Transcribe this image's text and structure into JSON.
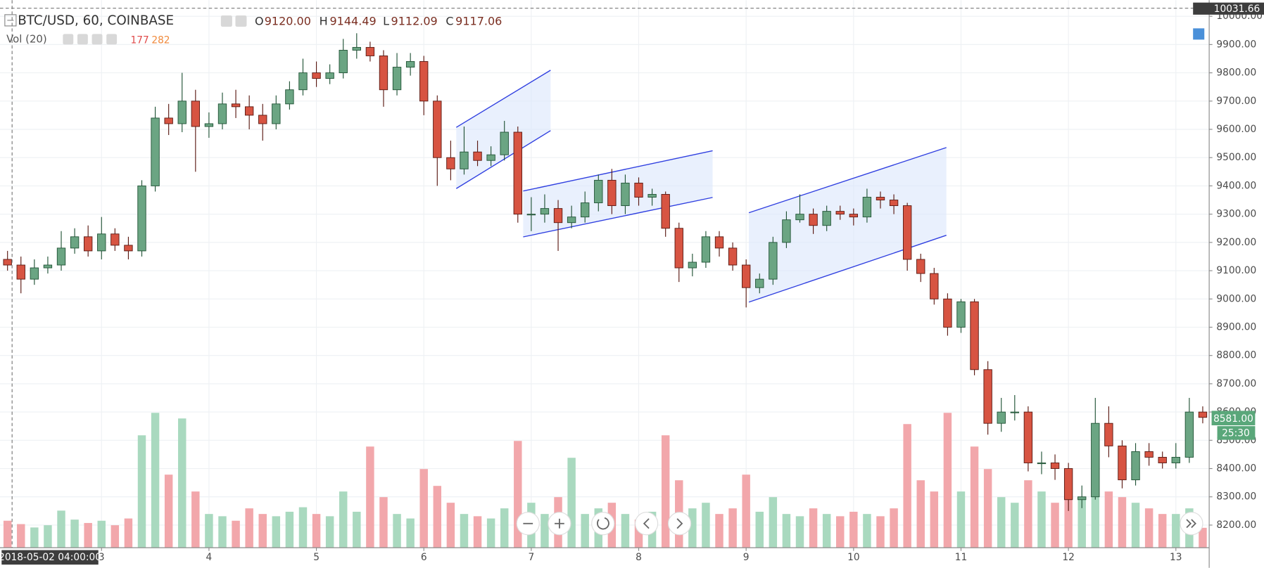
{
  "chart_data": {
    "type": "candlestick",
    "title": "BTC/USD, 60, COINBASE",
    "ohlc_legend": [
      {
        "label": "O",
        "value": "9120.00"
      },
      {
        "label": "H",
        "value": "9144.49"
      },
      {
        "label": "L",
        "value": "9112.09"
      },
      {
        "label": "C",
        "value": "9117.06"
      }
    ],
    "volume_legend": {
      "label": "Vol (20)",
      "values": [
        "177",
        "282"
      ]
    },
    "x": [
      2.125,
      2.25,
      2.375,
      2.5,
      2.625,
      2.75,
      2.875,
      3,
      3.125,
      3.25,
      3.375,
      3.5,
      3.625,
      3.75,
      3.875,
      4,
      4.125,
      4.25,
      4.375,
      4.5,
      4.625,
      4.75,
      4.875,
      5,
      5.125,
      5.25,
      5.375,
      5.5,
      5.625,
      5.75,
      5.875,
      6,
      6.125,
      6.25,
      6.375,
      6.5,
      6.625,
      6.75,
      6.875,
      7,
      7.125,
      7.25,
      7.375,
      7.5,
      7.625,
      7.75,
      7.875,
      8,
      8.125,
      8.25,
      8.375,
      8.5,
      8.625,
      8.75,
      8.875,
      9,
      9.125,
      9.25,
      9.375,
      9.5,
      9.625,
      9.75,
      9.875,
      10,
      10.125,
      10.25,
      10.375,
      10.5,
      10.625,
      10.75,
      10.875,
      11,
      11.125,
      11.25,
      11.375,
      11.5,
      11.625,
      11.75,
      11.875,
      12,
      12.125,
      12.25,
      12.375,
      12.5,
      12.625,
      12.75,
      12.875,
      13,
      13.125,
      13.25
    ],
    "open": [
      9140,
      9120,
      9070,
      9110,
      9120,
      9180,
      9220,
      9170,
      9230,
      9190,
      9170,
      9400,
      9640,
      9620,
      9700,
      9610,
      9620,
      9690,
      9680,
      9650,
      9620,
      9690,
      9740,
      9800,
      9780,
      9800,
      9880,
      9890,
      9860,
      9740,
      9820,
      9840,
      9700,
      9500,
      9460,
      9520,
      9490,
      9510,
      9590,
      9300,
      9300,
      9320,
      9270,
      9290,
      9340,
      9420,
      9330,
      9410,
      9360,
      9370,
      9250,
      9110,
      9130,
      9220,
      9180,
      9120,
      9040,
      9070,
      9200,
      9280,
      9300,
      9260,
      9310,
      9300,
      9290,
      9360,
      9350,
      9330,
      9140,
      9090,
      9000,
      8900,
      8990,
      8750,
      8560,
      8600,
      8600,
      8420,
      8420,
      8400,
      8290,
      8300,
      8560,
      8480,
      8360,
      8460,
      8440,
      8420,
      8440,
      8600
    ],
    "high": [
      9170,
      9150,
      9140,
      9150,
      9240,
      9250,
      9260,
      9290,
      9250,
      9220,
      9420,
      9680,
      9690,
      9800,
      9740,
      9660,
      9730,
      9740,
      9720,
      9690,
      9720,
      9770,
      9850,
      9840,
      9830,
      9920,
      9940,
      9910,
      9880,
      9870,
      9870,
      9860,
      9720,
      9560,
      9610,
      9560,
      9540,
      9630,
      9610,
      9360,
      9370,
      9350,
      9330,
      9380,
      9440,
      9460,
      9440,
      9430,
      9390,
      9380,
      9270,
      9160,
      9240,
      9240,
      9200,
      9140,
      9090,
      9220,
      9310,
      9370,
      9320,
      9330,
      9330,
      9320,
      9390,
      9380,
      9370,
      9340,
      9160,
      9110,
      9020,
      9000,
      9000,
      8780,
      8650,
      8660,
      8620,
      8460,
      8450,
      8420,
      8340,
      8650,
      8620,
      8500,
      8490,
      8490,
      8460,
      8490,
      8650,
      8620
    ],
    "low": [
      9100,
      9020,
      9050,
      9090,
      9100,
      9160,
      9150,
      9140,
      9170,
      9140,
      9150,
      9380,
      9580,
      9590,
      9450,
      9570,
      9600,
      9640,
      9600,
      9560,
      9600,
      9670,
      9720,
      9750,
      9760,
      9780,
      9850,
      9840,
      9680,
      9720,
      9790,
      9650,
      9400,
      9420,
      9440,
      9470,
      9470,
      9490,
      9270,
      9240,
      9270,
      9170,
      9250,
      9270,
      9310,
      9300,
      9300,
      9330,
      9330,
      9220,
      9060,
      9080,
      9110,
      9150,
      9100,
      8970,
      9020,
      9050,
      9180,
      9270,
      9230,
      9240,
      9280,
      9260,
      9270,
      9320,
      9300,
      9100,
      9060,
      8980,
      8870,
      8880,
      8730,
      8520,
      8530,
      8570,
      8390,
      8380,
      8360,
      8250,
      8260,
      8290,
      8440,
      8330,
      8340,
      8410,
      8400,
      8400,
      8420,
      8560
    ],
    "close": [
      9120,
      9070,
      9110,
      9120,
      9180,
      9220,
      9170,
      9230,
      9190,
      9170,
      9400,
      9640,
      9620,
      9700,
      9610,
      9620,
      9690,
      9680,
      9650,
      9620,
      9690,
      9740,
      9800,
      9780,
      9800,
      9880,
      9890,
      9860,
      9740,
      9820,
      9840,
      9700,
      9500,
      9460,
      9520,
      9490,
      9510,
      9590,
      9300,
      9300,
      9320,
      9270,
      9290,
      9340,
      9420,
      9330,
      9410,
      9360,
      9370,
      9250,
      9110,
      9130,
      9220,
      9180,
      9120,
      9040,
      9070,
      9200,
      9280,
      9300,
      9260,
      9310,
      9300,
      9290,
      9360,
      9350,
      9330,
      9140,
      9090,
      9000,
      8900,
      8990,
      8750,
      8560,
      8600,
      8600,
      8420,
      8420,
      8400,
      8290,
      8300,
      8560,
      8480,
      8360,
      8460,
      8440,
      8420,
      8440,
      8600,
      8581
    ],
    "volume": [
      240,
      210,
      180,
      200,
      330,
      250,
      220,
      240,
      200,
      260,
      1000,
      1200,
      650,
      1150,
      500,
      300,
      280,
      240,
      350,
      300,
      280,
      320,
      360,
      300,
      280,
      500,
      320,
      900,
      450,
      300,
      260,
      700,
      550,
      400,
      300,
      280,
      260,
      350,
      950,
      400,
      300,
      450,
      800,
      300,
      350,
      400,
      300,
      250,
      320,
      1000,
      600,
      350,
      400,
      300,
      350,
      650,
      320,
      450,
      300,
      280,
      350,
      300,
      280,
      320,
      300,
      280,
      350,
      1100,
      600,
      500,
      1200,
      500,
      900,
      700,
      450,
      400,
      600,
      500,
      400,
      700,
      450,
      800,
      500,
      450,
      400,
      350,
      300,
      300,
      350,
      177
    ],
    "up_color": "#6ba583",
    "down_color": "#d75442",
    "up_volume_color": "#a9d9bf",
    "down_volume_color": "#f2a7ab",
    "xlim": [
      2.055,
      13.31
    ],
    "xticks": [
      3,
      4,
      5,
      6,
      7,
      8,
      9,
      10,
      11,
      12,
      13
    ],
    "ylim": [
      8120,
      10057
    ],
    "yticks": [
      {
        "value": 8200,
        "label": "8200.00"
      },
      {
        "value": 8300,
        "label": "8300.00"
      },
      {
        "value": 8400,
        "label": "8400.00"
      },
      {
        "value": 8500,
        "label": "8500.00"
      },
      {
        "value": 8600,
        "label": "8600.00"
      },
      {
        "value": 8700,
        "label": "8700.00"
      },
      {
        "value": 8800,
        "label": "8800.00"
      },
      {
        "value": 8900,
        "label": "8900.00"
      },
      {
        "value": 9000,
        "label": "9000.00"
      },
      {
        "value": 9100,
        "label": "9100.00"
      },
      {
        "value": 9200,
        "label": "9200.00"
      },
      {
        "value": 9300,
        "label": "9300.00"
      },
      {
        "value": 9400,
        "label": "9400.00"
      },
      {
        "value": 9500,
        "label": "9500.00"
      },
      {
        "value": 9600,
        "label": "9600.00"
      },
      {
        "value": 9700,
        "label": "9700.00"
      },
      {
        "value": 9800,
        "label": "9800.00"
      },
      {
        "value": 9900,
        "label": "9900.00"
      },
      {
        "value": 10000,
        "label": "10000.00"
      }
    ],
    "volume_ylim": [
      0,
      4800
    ],
    "grid": true,
    "last_price_label": "8581.00",
    "countdown": "25:30",
    "crosshair_price_label": "10031.66",
    "crosshair_time_label": "2018-05-02 04:00:00"
  }
}
